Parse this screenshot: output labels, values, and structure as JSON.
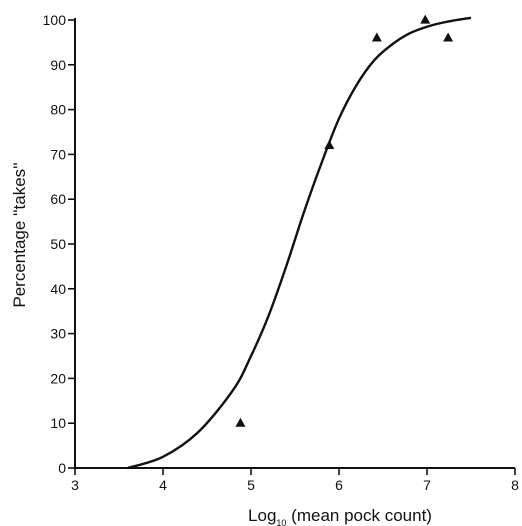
{
  "chart_data": {
    "type": "scatter",
    "title": "",
    "xlabel_prefix": "Log",
    "xlabel_subscript": "10",
    "xlabel_rest": " (mean pock count)",
    "ylabel": "Percentage ''takes''",
    "xlim": [
      3,
      8
    ],
    "ylim": [
      0,
      100
    ],
    "x_ticks": [
      3,
      4,
      5,
      6,
      7,
      8
    ],
    "y_ticks": [
      0,
      10,
      20,
      30,
      40,
      50,
      60,
      70,
      80,
      90,
      100
    ],
    "grid": false,
    "series": [
      {
        "marker": "triangle",
        "x": [
          4.88,
          5.89,
          6.43,
          6.98,
          7.24
        ],
        "y": [
          10,
          72,
          96,
          100,
          96
        ]
      }
    ],
    "fitted_curve": {
      "x": [
        3.6,
        4.0,
        4.4,
        4.8,
        5.0,
        5.2,
        5.4,
        5.6,
        5.8,
        6.0,
        6.2,
        6.4,
        6.6,
        6.8,
        7.0,
        7.2,
        7.5
      ],
      "y": [
        0,
        2.5,
        8,
        17.5,
        25,
        34,
        45,
        57,
        68,
        78,
        85.5,
        91,
        94.5,
        97,
        98.5,
        99.5,
        100.5
      ]
    },
    "colors": {
      "ink": "#111111",
      "background": "#ffffff"
    }
  }
}
